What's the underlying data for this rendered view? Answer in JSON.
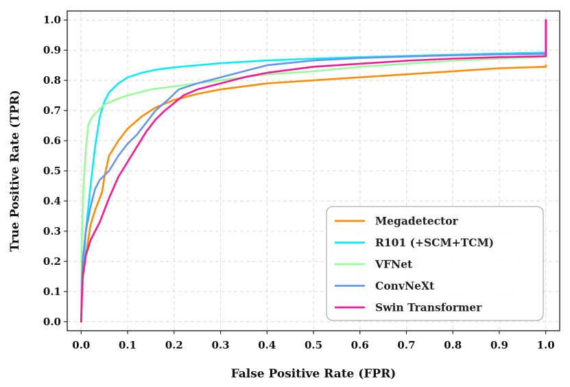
{
  "chart_data": {
    "type": "line",
    "title": "",
    "xlabel": "False Positive Rate (FPR)",
    "ylabel": "True Positive Rate (TPR)",
    "xlim": [
      -0.03,
      1.03
    ],
    "ylim": [
      -0.03,
      1.03
    ],
    "xticks": [
      0.0,
      0.1,
      0.2,
      0.3,
      0.4,
      0.5,
      0.6,
      0.7,
      0.8,
      0.9,
      1.0
    ],
    "yticks": [
      0.0,
      0.1,
      0.2,
      0.3,
      0.4,
      0.5,
      0.6,
      0.7,
      0.8,
      0.9,
      1.0
    ],
    "xtick_labels": [
      "0.0",
      "0.1",
      "0.2",
      "0.3",
      "0.4",
      "0.5",
      "0.6",
      "0.7",
      "0.8",
      "0.9",
      "1.0"
    ],
    "ytick_labels": [
      "0.0",
      "0.1",
      "0.2",
      "0.3",
      "0.4",
      "0.5",
      "0.6",
      "0.7",
      "0.8",
      "0.9",
      "1.0"
    ],
    "grid": true,
    "legend_position": "lower-right",
    "series": [
      {
        "name": "Megadetector",
        "color": "#ff8c00",
        "points": [
          [
            0.0,
            0.0
          ],
          [
            0.002,
            0.12
          ],
          [
            0.01,
            0.22
          ],
          [
            0.015,
            0.27
          ],
          [
            0.02,
            0.32
          ],
          [
            0.03,
            0.37
          ],
          [
            0.04,
            0.41
          ],
          [
            0.045,
            0.43
          ],
          [
            0.05,
            0.48
          ],
          [
            0.06,
            0.55
          ],
          [
            0.08,
            0.6
          ],
          [
            0.1,
            0.64
          ],
          [
            0.13,
            0.68
          ],
          [
            0.16,
            0.71
          ],
          [
            0.2,
            0.735
          ],
          [
            0.25,
            0.755
          ],
          [
            0.3,
            0.77
          ],
          [
            0.35,
            0.78
          ],
          [
            0.4,
            0.79
          ],
          [
            0.5,
            0.8
          ],
          [
            0.6,
            0.81
          ],
          [
            0.7,
            0.82
          ],
          [
            0.8,
            0.83
          ],
          [
            0.9,
            0.84
          ],
          [
            1.0,
            0.845
          ],
          [
            1.0,
            0.85
          ]
        ]
      },
      {
        "name": "R101 (+SCM+TCM)",
        "color": "#00eeff",
        "points": [
          [
            0.0,
            0.0
          ],
          [
            0.002,
            0.1
          ],
          [
            0.01,
            0.3
          ],
          [
            0.02,
            0.45
          ],
          [
            0.03,
            0.58
          ],
          [
            0.04,
            0.68
          ],
          [
            0.05,
            0.73
          ],
          [
            0.06,
            0.76
          ],
          [
            0.08,
            0.79
          ],
          [
            0.1,
            0.81
          ],
          [
            0.13,
            0.825
          ],
          [
            0.16,
            0.835
          ],
          [
            0.2,
            0.843
          ],
          [
            0.3,
            0.857
          ],
          [
            0.4,
            0.866
          ],
          [
            0.5,
            0.872
          ],
          [
            0.6,
            0.877
          ],
          [
            0.7,
            0.881
          ],
          [
            0.8,
            0.885
          ],
          [
            0.9,
            0.889
          ],
          [
            1.0,
            0.892
          ],
          [
            1.0,
            0.885
          ]
        ]
      },
      {
        "name": "VFNet",
        "color": "#98fb98",
        "points": [
          [
            0.0,
            0.0
          ],
          [
            0.001,
            0.25
          ],
          [
            0.005,
            0.45
          ],
          [
            0.01,
            0.57
          ],
          [
            0.015,
            0.65
          ],
          [
            0.02,
            0.67
          ],
          [
            0.03,
            0.69
          ],
          [
            0.05,
            0.72
          ],
          [
            0.08,
            0.74
          ],
          [
            0.1,
            0.75
          ],
          [
            0.15,
            0.77
          ],
          [
            0.2,
            0.78
          ],
          [
            0.3,
            0.8
          ],
          [
            0.4,
            0.82
          ],
          [
            0.5,
            0.83
          ],
          [
            0.6,
            0.845
          ],
          [
            0.7,
            0.855
          ],
          [
            0.8,
            0.865
          ],
          [
            0.9,
            0.872
          ],
          [
            1.0,
            0.878
          ],
          [
            1.0,
            0.88
          ]
        ]
      },
      {
        "name": "ConvNeXt",
        "color": "#6495ed",
        "points": [
          [
            0.0,
            0.0
          ],
          [
            0.003,
            0.2
          ],
          [
            0.01,
            0.3
          ],
          [
            0.02,
            0.38
          ],
          [
            0.03,
            0.44
          ],
          [
            0.04,
            0.47
          ],
          [
            0.06,
            0.5
          ],
          [
            0.08,
            0.55
          ],
          [
            0.1,
            0.59
          ],
          [
            0.12,
            0.62
          ],
          [
            0.14,
            0.66
          ],
          [
            0.16,
            0.7
          ],
          [
            0.19,
            0.74
          ],
          [
            0.21,
            0.77
          ],
          [
            0.25,
            0.79
          ],
          [
            0.3,
            0.81
          ],
          [
            0.35,
            0.83
          ],
          [
            0.4,
            0.85
          ],
          [
            0.5,
            0.866
          ],
          [
            0.6,
            0.874
          ],
          [
            0.7,
            0.879
          ],
          [
            0.8,
            0.883
          ],
          [
            0.9,
            0.886
          ],
          [
            1.0,
            0.888
          ],
          [
            1.0,
            0.88
          ]
        ]
      },
      {
        "name": "Swin Transformer",
        "color": "#ff1493",
        "points": [
          [
            0.0,
            0.0
          ],
          [
            0.003,
            0.15
          ],
          [
            0.01,
            0.22
          ],
          [
            0.02,
            0.27
          ],
          [
            0.04,
            0.33
          ],
          [
            0.06,
            0.41
          ],
          [
            0.08,
            0.48
          ],
          [
            0.1,
            0.53
          ],
          [
            0.12,
            0.58
          ],
          [
            0.14,
            0.63
          ],
          [
            0.16,
            0.67
          ],
          [
            0.18,
            0.7
          ],
          [
            0.2,
            0.725
          ],
          [
            0.22,
            0.75
          ],
          [
            0.25,
            0.77
          ],
          [
            0.3,
            0.79
          ],
          [
            0.35,
            0.81
          ],
          [
            0.4,
            0.825
          ],
          [
            0.45,
            0.835
          ],
          [
            0.5,
            0.845
          ],
          [
            0.6,
            0.855
          ],
          [
            0.7,
            0.865
          ],
          [
            0.8,
            0.872
          ],
          [
            0.9,
            0.877
          ],
          [
            1.0,
            0.88
          ],
          [
            1.0,
            1.0
          ]
        ]
      }
    ]
  }
}
